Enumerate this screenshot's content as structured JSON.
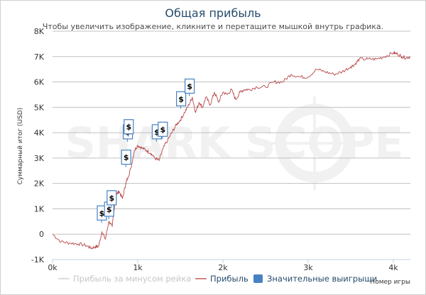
{
  "chart_data": {
    "type": "line",
    "title": "Общая прибыль",
    "subtitle": "Чтобы увеличить изображение, кликните и перетащите мышкой внутрь графика.",
    "xlabel": "Номер игры",
    "ylabel": "Суммарный итог (USD)",
    "xlim": [
      0,
      4200
    ],
    "ylim": [
      -1000,
      8000
    ],
    "x_ticks": [
      "0k",
      "1k",
      "2k",
      "3k",
      "4k"
    ],
    "y_ticks": [
      "-1K",
      "0",
      "1K",
      "2K",
      "3K",
      "4K",
      "5K",
      "6K",
      "7K",
      "8K"
    ],
    "grid": "horizontal",
    "watermark": "SHARK SCOPE",
    "series": [
      {
        "name": "Прибыль",
        "color": "#b84848",
        "x": [
          0,
          100,
          200,
          300,
          400,
          450,
          500,
          540,
          580,
          620,
          660,
          700,
          740,
          780,
          820,
          860,
          880,
          920,
          960,
          1000,
          1050,
          1100,
          1150,
          1200,
          1250,
          1300,
          1350,
          1400,
          1450,
          1500,
          1550,
          1600,
          1640,
          1680,
          1720,
          1760,
          1800,
          1850,
          1900,
          1950,
          2000,
          2050,
          2100,
          2150,
          2200,
          2250,
          2300,
          2400,
          2500,
          2600,
          2700,
          2800,
          2900,
          3000,
          3100,
          3200,
          3300,
          3400,
          3500,
          3550,
          3600,
          3700,
          3800,
          3900,
          4000,
          4050,
          4100,
          4150,
          4200
        ],
        "values": [
          0,
          -300,
          -350,
          -380,
          -450,
          -550,
          -500,
          -480,
          100,
          -200,
          500,
          300,
          1500,
          1700,
          1400,
          2000,
          2200,
          2600,
          3300,
          3500,
          3400,
          3300,
          3200,
          3000,
          2900,
          3400,
          3700,
          4000,
          4300,
          4500,
          4800,
          5100,
          5400,
          4800,
          5200,
          5000,
          5400,
          5100,
          5600,
          5200,
          5600,
          5500,
          5700,
          5300,
          5600,
          5700,
          5700,
          5800,
          5800,
          6000,
          6000,
          6300,
          6200,
          6200,
          6500,
          6400,
          6300,
          6400,
          6600,
          6700,
          6900,
          6900,
          6900,
          7000,
          7150,
          7100,
          7000,
          6950,
          7000
        ]
      },
      {
        "name": "Прибыль за минусом рейка",
        "color": "#c8c8c8",
        "x": [],
        "values": []
      },
      {
        "name": "Значительные выигрыши",
        "color": "#4682c3",
        "type": "flags",
        "label": "$",
        "x": [
          575,
          660,
          690,
          860,
          880,
          890,
          1220,
          1290,
          1505,
          1605
        ],
        "values": [
          500,
          650,
          1100,
          2700,
          3700,
          3900,
          3700,
          3800,
          5000,
          5500
        ]
      }
    ],
    "legend": {
      "placement": "bottom",
      "items": [
        {
          "label": "Прибыль за минусом рейка",
          "color": "#c8c8c8",
          "style": "line",
          "text_color": "#c6c6c6"
        },
        {
          "label": "Прибыль",
          "color": "#b84848",
          "style": "line",
          "text_color": "#274b6d"
        },
        {
          "label": "Значительные выигрыши",
          "color": "#4682c3",
          "style": "box",
          "text_color": "#274b6d"
        }
      ]
    }
  }
}
